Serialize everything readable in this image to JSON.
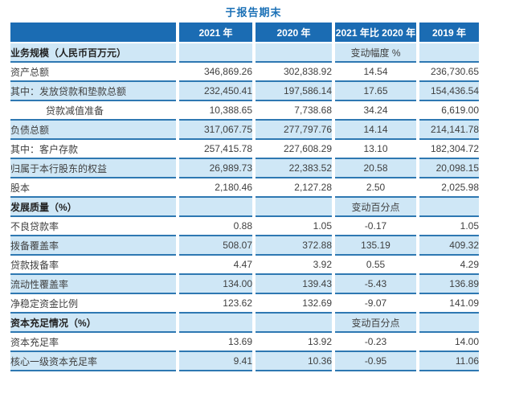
{
  "title": "于报告期末",
  "colors": {
    "header_bg": "#1b6cb3",
    "row_alt_bg": "#cfe7f6",
    "row_border": "#2e78b2",
    "title": "#1a70b6"
  },
  "table": {
    "columns": [
      "",
      "2021 年",
      "2020 年",
      "2021 年比 2020 年",
      "2019 年"
    ],
    "rows": [
      {
        "type": "section",
        "label": "业务规模（人民币百万元）",
        "v2021": "",
        "v2020": "",
        "change": "变动幅度 %",
        "v2019": ""
      },
      {
        "type": "data",
        "label": "资产总额",
        "v2021": "346,869.26",
        "v2020": "302,838.92",
        "change": "14.54",
        "v2019": "236,730.65"
      },
      {
        "type": "data",
        "label": "其中：发放贷款和垫款总额",
        "v2021": "232,450.41",
        "v2020": "197,586.14",
        "change": "17.65",
        "v2019": "154,436.54"
      },
      {
        "type": "data",
        "indent": true,
        "label": "贷款减值准备",
        "v2021": "10,388.65",
        "v2020": "7,738.68",
        "change": "34.24",
        "v2019": "6,619.00"
      },
      {
        "type": "data",
        "label": "负债总额",
        "v2021": "317,067.75",
        "v2020": "277,797.76",
        "change": "14.14",
        "v2019": "214,141.78"
      },
      {
        "type": "data",
        "label": "其中：客户存款",
        "v2021": "257,415.78",
        "v2020": "227,608.29",
        "change": "13.10",
        "v2019": "182,304.72"
      },
      {
        "type": "data",
        "label": "归属于本行股东的权益",
        "v2021": "26,989.73",
        "v2020": "22,383.52",
        "change": "20.58",
        "v2019": "20,098.15"
      },
      {
        "type": "data",
        "label": "股本",
        "v2021": "2,180.46",
        "v2020": "2,127.28",
        "change": "2.50",
        "v2019": "2,025.98"
      },
      {
        "type": "section",
        "label": "发展质量（%）",
        "v2021": "",
        "v2020": "",
        "change": "变动百分点",
        "v2019": ""
      },
      {
        "type": "data",
        "label": "不良贷款率",
        "v2021": "0.88",
        "v2020": "1.05",
        "change": "-0.17",
        "v2019": "1.05"
      },
      {
        "type": "data",
        "label": "拨备覆盖率",
        "v2021": "508.07",
        "v2020": "372.88",
        "change": "135.19",
        "v2019": "409.32"
      },
      {
        "type": "data",
        "label": "贷款拨备率",
        "v2021": "4.47",
        "v2020": "3.92",
        "change": "0.55",
        "v2019": "4.29"
      },
      {
        "type": "data",
        "label": "流动性覆盖率",
        "v2021": "134.00",
        "v2020": "139.43",
        "change": "-5.43",
        "v2019": "136.89"
      },
      {
        "type": "data",
        "label": "净稳定资金比例",
        "v2021": "123.62",
        "v2020": "132.69",
        "change": "-9.07",
        "v2019": "141.09"
      },
      {
        "type": "section",
        "label": "资本充足情况（%）",
        "v2021": "",
        "v2020": "",
        "change": "变动百分点",
        "v2019": ""
      },
      {
        "type": "data",
        "label": "资本充足率",
        "v2021": "13.69",
        "v2020": "13.92",
        "change": "-0.23",
        "v2019": "14.00"
      },
      {
        "type": "data",
        "label": "核心一级资本充足率",
        "v2021": "9.41",
        "v2020": "10.36",
        "change": "-0.95",
        "v2019": "11.06"
      }
    ]
  }
}
